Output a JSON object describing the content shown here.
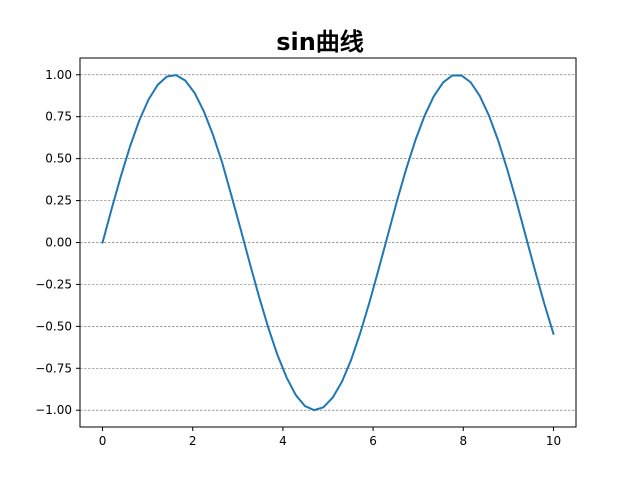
{
  "chart_data": {
    "type": "line",
    "title": "sin曲线",
    "xlabel": "",
    "ylabel": "",
    "xlim": [
      -0.5,
      10.5
    ],
    "ylim": [
      -1.1,
      1.1
    ],
    "xticks": [
      0,
      2,
      4,
      6,
      8,
      10
    ],
    "xtick_labels": [
      "0",
      "2",
      "4",
      "6",
      "8",
      "10"
    ],
    "yticks": [
      1.0,
      0.75,
      0.5,
      0.25,
      0.0,
      -0.25,
      -0.5,
      -0.75,
      -1.0
    ],
    "ytick_labels": [
      "1.00",
      "0.75",
      "0.50",
      "0.25",
      "0.00",
      "−0.25",
      "−0.50",
      "−0.75",
      "−1.00"
    ],
    "grid": {
      "axis": "y",
      "style": "dashed",
      "color": "#808080"
    },
    "series": [
      {
        "color": "#1f77b4",
        "x": [
          0.0,
          0.2041,
          0.4082,
          0.6122,
          0.8163,
          1.0204,
          1.2245,
          1.4286,
          1.6327,
          1.8367,
          2.0408,
          2.2449,
          2.449,
          2.6531,
          2.8571,
          3.0612,
          3.2653,
          3.4694,
          3.6735,
          3.8776,
          4.0816,
          4.2857,
          4.4898,
          4.6939,
          4.898,
          5.102,
          5.3061,
          5.5102,
          5.7143,
          5.9184,
          6.1224,
          6.3265,
          6.5306,
          6.7347,
          6.9388,
          7.1429,
          7.3469,
          7.551,
          7.7551,
          7.9592,
          8.1633,
          8.3673,
          8.5714,
          8.7755,
          8.9796,
          9.1837,
          9.3878,
          9.5918,
          9.7959,
          10.0
        ],
        "y": [
          0.0,
          0.2027,
          0.3969,
          0.5747,
          0.7288,
          0.8525,
          0.9406,
          0.9899,
          0.998,
          0.9649,
          0.8922,
          0.7831,
          0.6422,
          0.4759,
          0.2806,
          0.0804,
          -0.1235,
          -0.3216,
          -0.506,
          -0.6693,
          -0.8052,
          -0.9096,
          -0.9754,
          -0.9995,
          -0.9824,
          -0.9254,
          -0.8316,
          -0.7019,
          -0.5403,
          -0.3576,
          -0.1598,
          0.0435,
          0.2486,
          0.4385,
          0.6103,
          0.7563,
          0.8725,
          0.9535,
          0.996,
          0.9963,
          0.9554,
          0.873,
          0.7559,
          0.6068,
          0.4322,
          0.2399,
          0.0354,
          -0.1675,
          -0.3637,
          -0.544
        ]
      }
    ]
  }
}
